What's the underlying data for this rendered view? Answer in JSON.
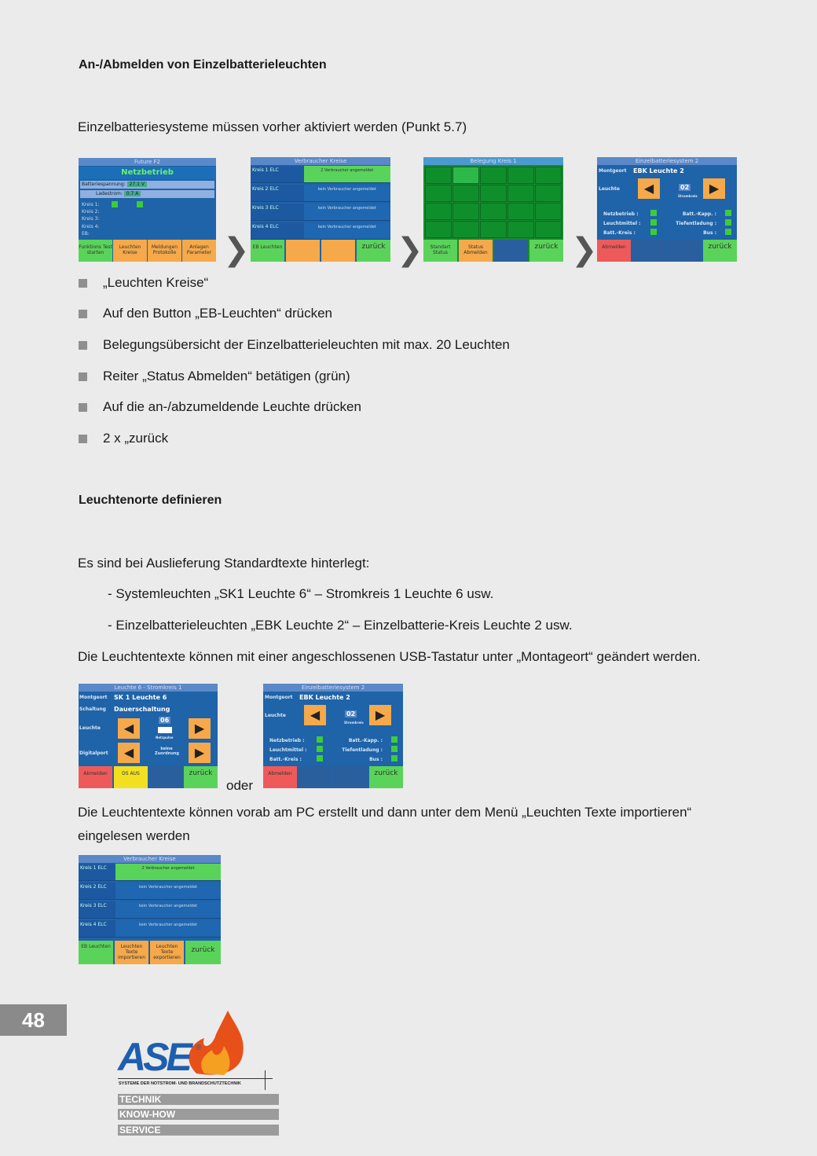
{
  "heading1": "An-/Abmelden von Einzelbatterieleuchten",
  "intro": "Einzelbatteriesysteme müssen vorher aktiviert werden (Punkt 5.7)",
  "screens_top": {
    "s1": {
      "title": "Future F2",
      "status": "Netzbetrieb",
      "batt_label": "Batteriespannung:",
      "batt_val": "27.1 V",
      "lade_label": "Ladestrom:",
      "lade_val": "0.7 A",
      "kreise": [
        "Kreis 1:",
        "Kreis 2:",
        "Kreis 3:",
        "Kreis 4:",
        "EB:"
      ],
      "buttons": [
        "Funktions Test starten",
        "Leuchten Kreise",
        "Meldungen Protokolle",
        "Anlagen Parameter"
      ]
    },
    "s2": {
      "title": "Verbraucher Kreise",
      "rows": [
        {
          "l": "Kreis 1 ELC",
          "v": "2 Verbraucher angemeldet"
        },
        {
          "l": "Kreis 2 ELC",
          "v": "kein Verbraucher angemeldet"
        },
        {
          "l": "Kreis 3 ELC",
          "v": "kein Verbraucher angemeldet"
        },
        {
          "l": "Kreis 4 ELC",
          "v": "kein Verbraucher angemeldet"
        }
      ],
      "buttons": [
        "EB Leuchten",
        "",
        "",
        "zurück"
      ]
    },
    "s3": {
      "title": "Belegung Kreis 1",
      "buttons": [
        "Standart Status",
        "Status Abmelden",
        "",
        "zurück"
      ]
    },
    "s4": {
      "title": "Einzelbatteriesystem 2",
      "montageort_label": "Montgeort",
      "montageort": "EBK Leuchte 2",
      "leuchte_label": "Leuchte",
      "nr": "02",
      "sub": "Stromkreis",
      "left": [
        "Netzbetrieb :",
        "Leuchtmittel :",
        "Batt.-Kreis :"
      ],
      "right": [
        "Batt.-Kapp. :",
        "Tiefentladung :",
        "Bus :"
      ],
      "buttons": [
        "Abmelden",
        "",
        "",
        "zurück"
      ]
    }
  },
  "bullets": [
    "„Leuchten Kreise“",
    "Auf den Button „EB-Leuchten“ drücken",
    "Belegungsübersicht der Einzelbatterieleuchten mit max. 20 Leuchten",
    "Reiter „Status Abmelden“ betätigen (grün)",
    "Auf die an-/abzumeldende Leuchte drücken",
    "2 x „zurück"
  ],
  "heading2": "Leuchtenorte definieren",
  "p1": "Es sind bei Auslieferung Standardtexte hinterlegt:",
  "p2": "- Systemleuchten „SK1 Leuchte 6“ – Stromkreis 1 Leuchte 6 usw.",
  "p3": "- Einzelbatterieleuchten „EBK Leuchte 2“ – Einzelbatterie-Kreis Leuchte 2 usw.",
  "p4": "Die Leuchtentexte können mit einer angeschlossenen USB-Tastatur unter „Montageort“ geändert werden.",
  "screens_mid": {
    "s5": {
      "title": "Leuchte 6 - Stromkreis 1",
      "r1l": "Montgeort",
      "r1": "SK 1 Leuchte 6",
      "r2l": "Schaltung",
      "r2": "Dauerschaltung",
      "r3l": "Leuchte",
      "nr": "06",
      "sub": "Netzpulse",
      "r4l": "Digitalport",
      "r4": "keine Zuordnung",
      "buttons": [
        "Abmelden",
        "DS AUS",
        "",
        "zurück"
      ]
    },
    "oder": "oder"
  },
  "p5a": "Die Leuchtentexte können vorab am PC erstellt und dann unter dem Menü „Leuchten Texte importieren“",
  "p5b": "eingelesen werden",
  "screen_bottom": {
    "title": "Verbraucher Kreise",
    "buttons": [
      "EB Leuchten",
      "Leuchten Texte importieren",
      "Leuchten Texte exportieren",
      "zurück"
    ]
  },
  "page_number": "48",
  "logo": {
    "brand": "ASE",
    "tagline": "SYSTEME DER NOTSTROM- UND BRANDSCHUTZTECHNIK",
    "bars": [
      "TECHNIK",
      "KNOW-HOW",
      "SERVICE"
    ]
  },
  "colors": {
    "panel_blue": "#1f63a8",
    "button_green": "#5ad35a",
    "button_orange": "#f6a94a",
    "button_red": "#ee5a5a",
    "page_bg": "#ebebeb"
  }
}
